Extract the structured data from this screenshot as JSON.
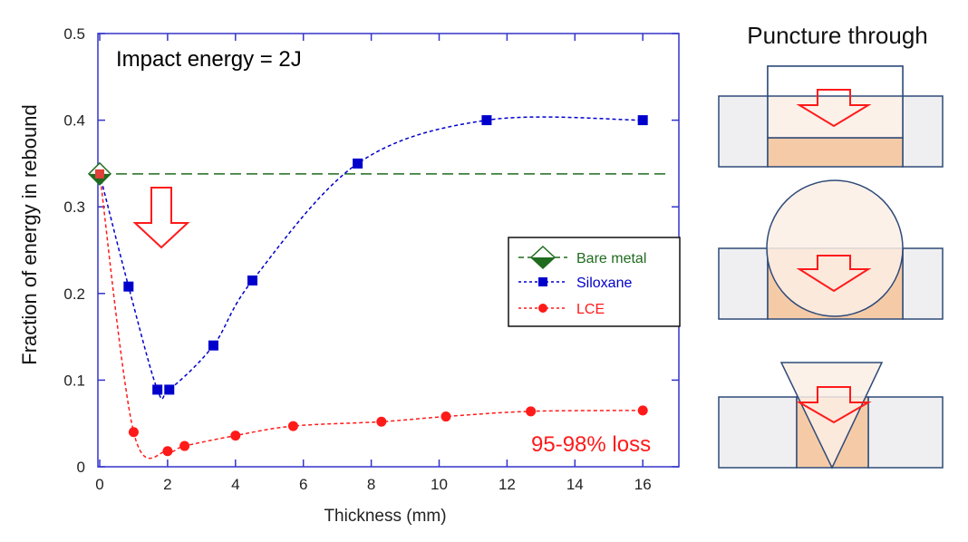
{
  "chart_data": {
    "type": "line",
    "xlabel": "Thickness (mm)",
    "ylabel": "Fraction of energy in rebound",
    "xlim": [
      0,
      17
    ],
    "ylim": [
      0,
      0.5
    ],
    "xticks": [
      0,
      2,
      4,
      6,
      8,
      10,
      12,
      14,
      16
    ],
    "yticks": [
      0,
      0.1,
      0.2,
      0.3,
      0.4,
      0.5
    ],
    "xtick_labels": [
      "0",
      "2",
      "4",
      "6",
      "8",
      "10",
      "12",
      "14",
      "16"
    ],
    "ytick_labels": [
      "0",
      "0.1",
      "0.2",
      "0.3",
      "0.4",
      "0.5"
    ],
    "grid": false,
    "legend_position": "right",
    "annotations": {
      "condition": "Impact energy = 2J",
      "loss": "95-98% loss"
    },
    "series": [
      {
        "name": "Bare metal",
        "color": "#1f6b1f",
        "marker": "diamond",
        "style": "dashed-horizontal",
        "x": [
          0
        ],
        "y": [
          0.338
        ]
      },
      {
        "name": "Siloxane",
        "color": "#0000cc",
        "marker": "square",
        "style": "dashed",
        "x": [
          0,
          0.85,
          1.7,
          2.05,
          3.35,
          4.5,
          7.6,
          11.4,
          16
        ],
        "y": [
          0.338,
          0.208,
          0.089,
          0.089,
          0.14,
          0.215,
          0.35,
          0.4,
          0.4
        ]
      },
      {
        "name": "LCE",
        "color": "#ff1a1a",
        "marker": "circle",
        "style": "dashed",
        "x": [
          0,
          1,
          2,
          2.5,
          4,
          5.7,
          8.3,
          10.2,
          12.7,
          16
        ],
        "y": [
          0.338,
          0.04,
          0.018,
          0.024,
          0.036,
          0.047,
          0.052,
          0.058,
          0.064,
          0.065
        ]
      }
    ]
  },
  "schematic": {
    "title": "Puncture through",
    "panels": [
      "flat-indenter",
      "spherical-indenter",
      "conical-indenter"
    ]
  }
}
